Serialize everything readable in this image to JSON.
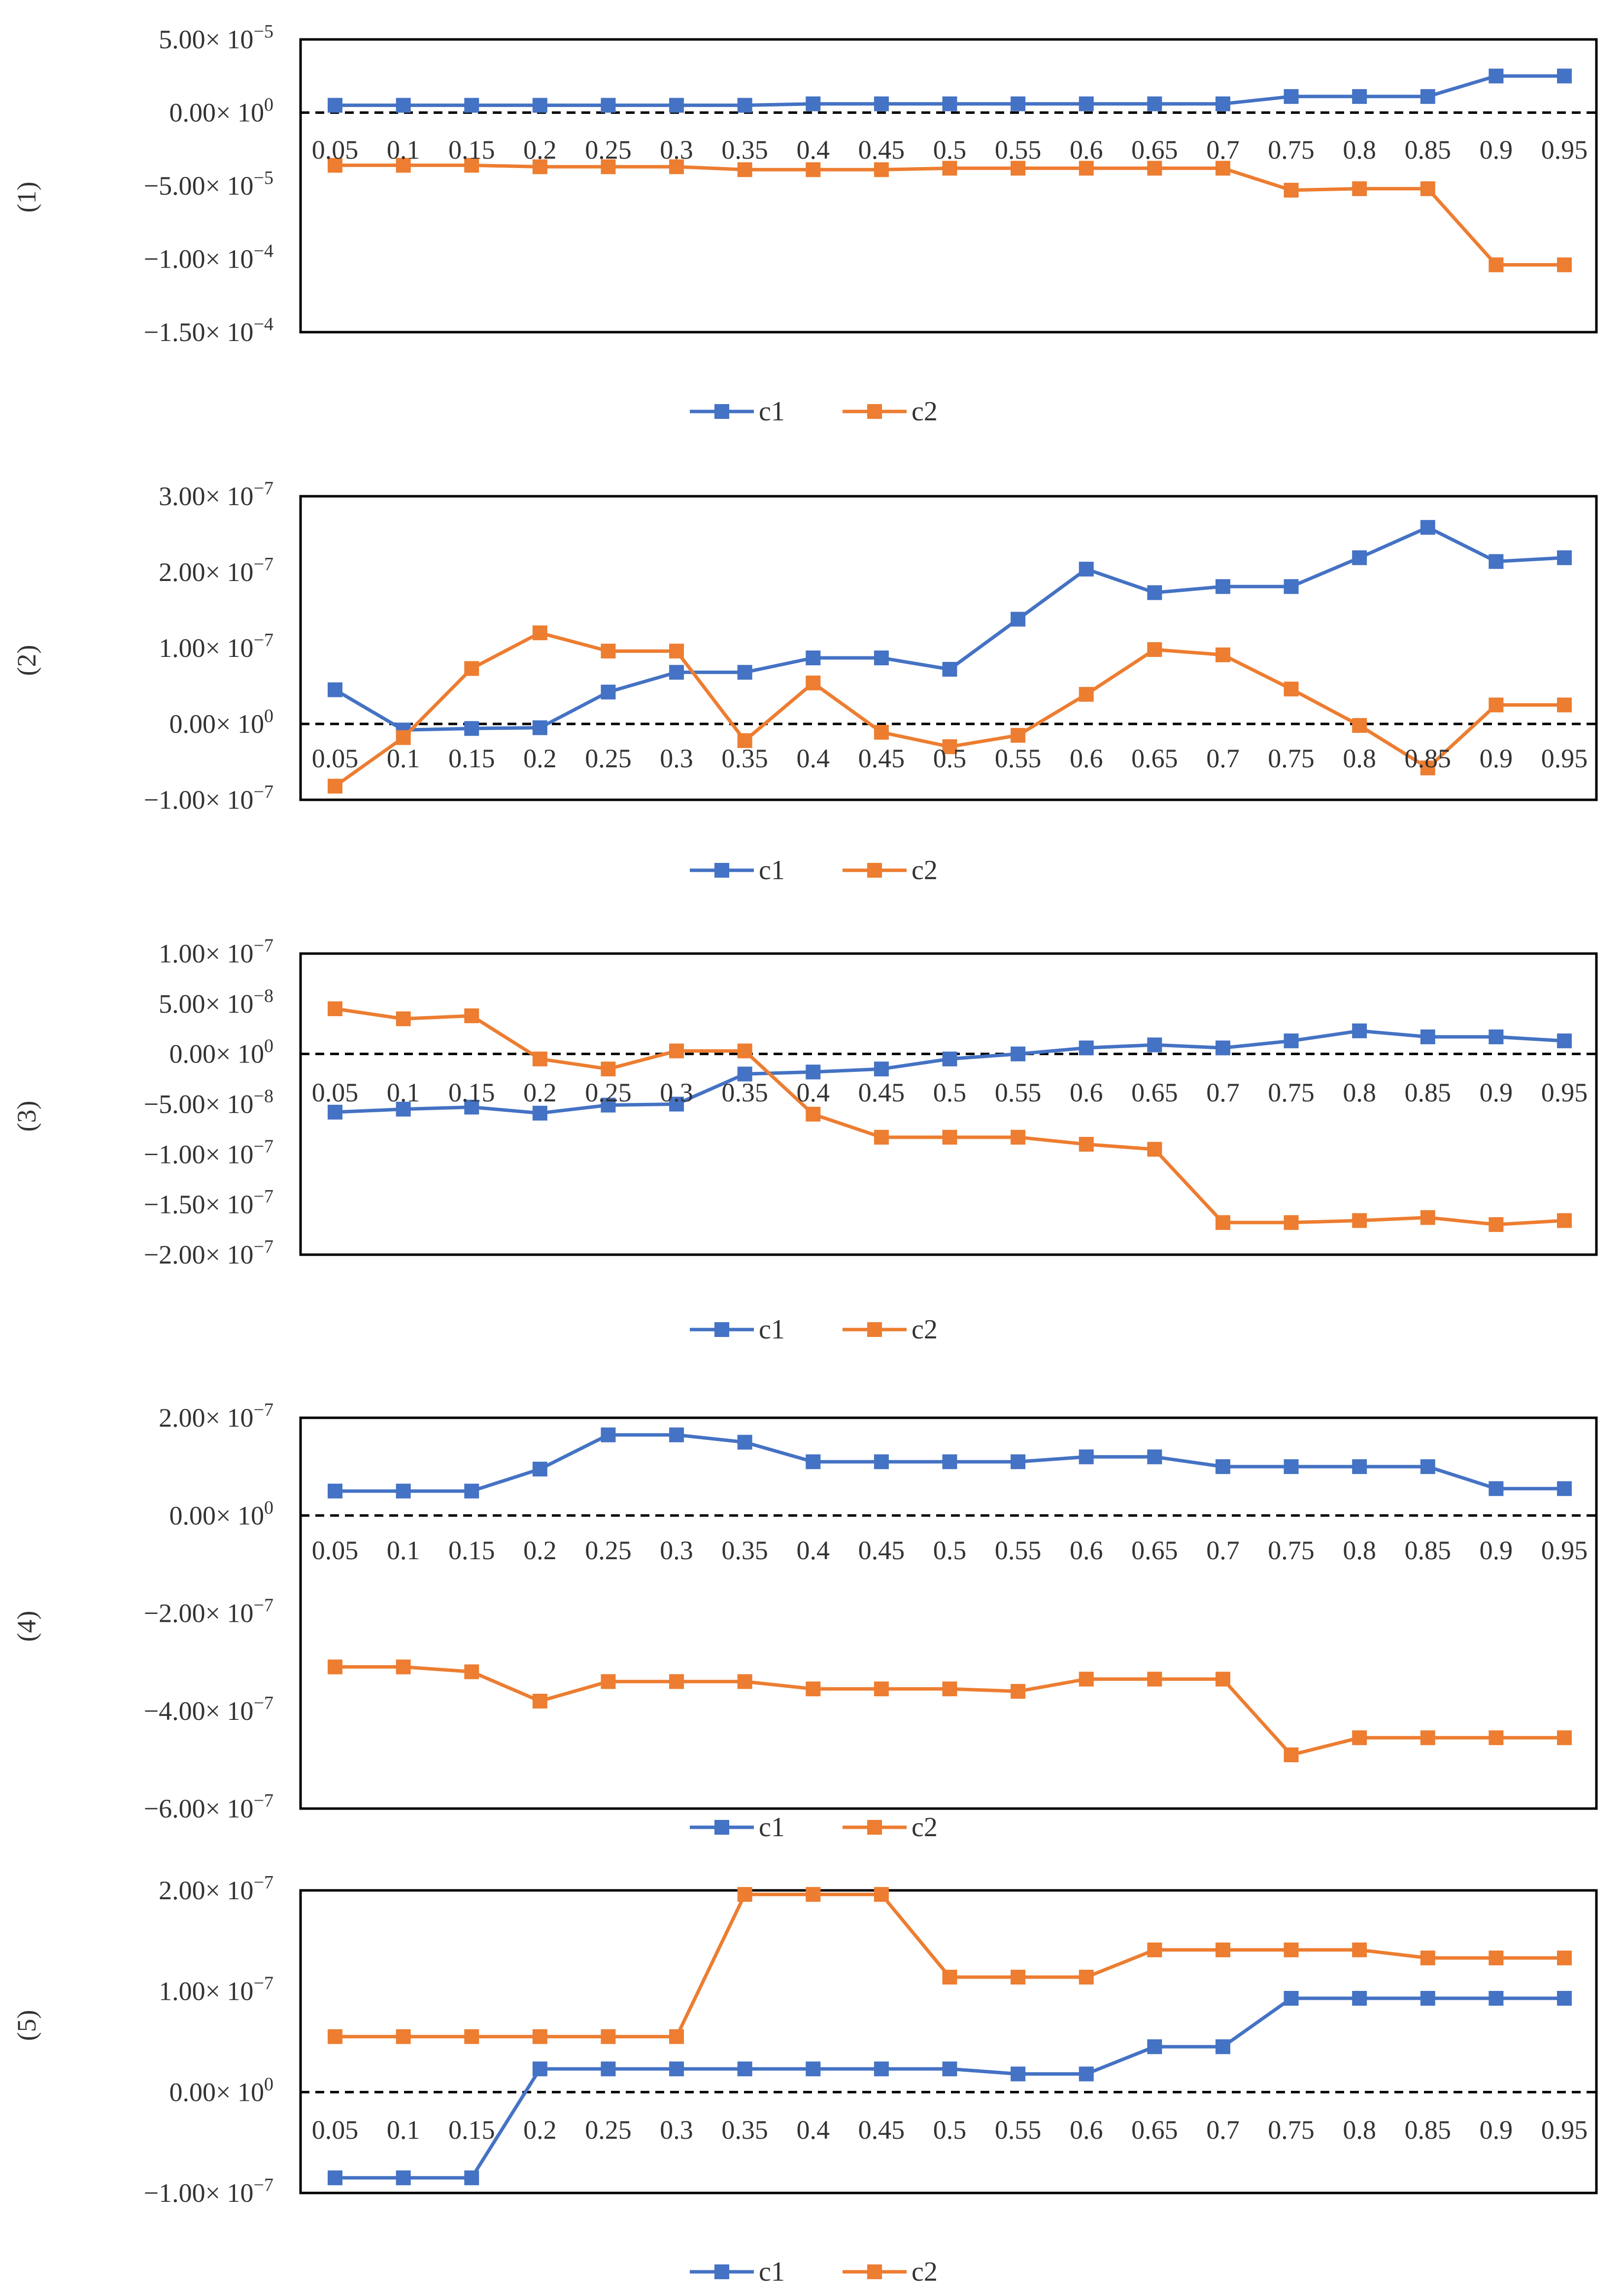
{
  "colors": {
    "c1": "#4472C4",
    "c2": "#ED7D31",
    "axis": "#000000",
    "text": "#333333"
  },
  "categories": [
    "0.05",
    "0.1",
    "0.15",
    "0.2",
    "0.25",
    "0.3",
    "0.35",
    "0.4",
    "0.45",
    "0.5",
    "0.55",
    "0.6",
    "0.65",
    "0.7",
    "0.75",
    "0.8",
    "0.85",
    "0.9",
    "0.95"
  ],
  "chart_data": [
    {
      "type": "line",
      "panel_label": "(1)",
      "ylim": [
        -0.00015,
        5e-05
      ],
      "yticks": [
        {
          "value": 5e-05,
          "mant": "5.00",
          "exp": "−5"
        },
        {
          "value": 0,
          "mant": "0.00",
          "exp": "0"
        },
        {
          "value": -5e-05,
          "mant": "−5.00",
          "exp": "−5"
        },
        {
          "value": -0.0001,
          "mant": "−1.00",
          "exp": "−4"
        },
        {
          "value": -0.00015,
          "mant": "−1.50",
          "exp": "−4"
        }
      ],
      "series": [
        {
          "name": "c1",
          "values": [
            5e-06,
            5e-06,
            5e-06,
            5e-06,
            5e-06,
            5e-06,
            5e-06,
            6e-06,
            6e-06,
            6e-06,
            6e-06,
            6e-06,
            6e-06,
            6e-06,
            1.1e-05,
            1.1e-05,
            1.1e-05,
            2.5e-05,
            2.5e-05
          ]
        },
        {
          "name": "c2",
          "values": [
            -3.6e-05,
            -3.6e-05,
            -3.6e-05,
            -3.7e-05,
            -3.7e-05,
            -3.7e-05,
            -3.9e-05,
            -3.9e-05,
            -3.9e-05,
            -3.8e-05,
            -3.8e-05,
            -3.8e-05,
            -3.8e-05,
            -3.8e-05,
            -5.3e-05,
            -5.2e-05,
            -5.2e-05,
            -0.000104,
            -0.000104
          ]
        }
      ]
    },
    {
      "type": "line",
      "panel_label": "(2)",
      "ylim": [
        -1e-07,
        3e-07
      ],
      "yticks": [
        {
          "value": 3e-07,
          "mant": "3.00",
          "exp": "−7"
        },
        {
          "value": 2e-07,
          "mant": "2.00",
          "exp": "−7"
        },
        {
          "value": 1e-07,
          "mant": "1.00",
          "exp": "−7"
        },
        {
          "value": 0,
          "mant": "0.00",
          "exp": "0"
        },
        {
          "value": -1e-07,
          "mant": "−1.00",
          "exp": "−7"
        }
      ],
      "series": [
        {
          "name": "c1",
          "values": [
            4.5e-08,
            -8e-09,
            -6e-09,
            -5e-09,
            4.2e-08,
            6.8e-08,
            6.8e-08,
            8.7e-08,
            8.7e-08,
            7.2e-08,
            1.38e-07,
            2.04e-07,
            1.73e-07,
            1.81e-07,
            1.81e-07,
            2.19e-07,
            2.59e-07,
            2.14e-07,
            2.19e-07
          ]
        },
        {
          "name": "c2",
          "values": [
            -8.2e-08,
            -1.8e-08,
            7.3e-08,
            1.2e-07,
            9.6e-08,
            9.6e-08,
            -2.2e-08,
            5.4e-08,
            -1.1e-08,
            -3e-08,
            -1.5e-08,
            3.9e-08,
            9.8e-08,
            9.1e-08,
            4.6e-08,
            -2e-09,
            -5.8e-08,
            2.5e-08,
            2.5e-08
          ]
        }
      ]
    },
    {
      "type": "line",
      "panel_label": "(3)",
      "ylim": [
        -2e-07,
        1e-07
      ],
      "yticks": [
        {
          "value": 1e-07,
          "mant": "1.00",
          "exp": "−7"
        },
        {
          "value": 5e-08,
          "mant": "5.00",
          "exp": "−8"
        },
        {
          "value": 0,
          "mant": "0.00",
          "exp": "0"
        },
        {
          "value": -5e-08,
          "mant": "−5.00",
          "exp": "−8"
        },
        {
          "value": -1e-07,
          "mant": "−1.00",
          "exp": "−7"
        },
        {
          "value": -1.5e-07,
          "mant": "−1.50",
          "exp": "−7"
        },
        {
          "value": -2e-07,
          "mant": "−2.00",
          "exp": "−7"
        }
      ],
      "series": [
        {
          "name": "c1",
          "values": [
            -5.8e-08,
            -5.5e-08,
            -5.3e-08,
            -5.9e-08,
            -5.1e-08,
            -5e-08,
            -2e-08,
            -1.8e-08,
            -1.5e-08,
            -5e-09,
            0,
            6e-09,
            9e-09,
            6e-09,
            1.3e-08,
            2.3e-08,
            1.7e-08,
            1.7e-08,
            1.3e-08
          ]
        },
        {
          "name": "c2",
          "values": [
            4.5e-08,
            3.5e-08,
            3.8e-08,
            -5e-09,
            -1.5e-08,
            3e-09,
            3e-09,
            -6e-08,
            -8.3e-08,
            -8.3e-08,
            -8.3e-08,
            -9e-08,
            -9.5e-08,
            -1.68e-07,
            -1.68e-07,
            -1.66e-07,
            -1.63e-07,
            -1.7e-07,
            -1.66e-07
          ]
        }
      ]
    },
    {
      "type": "line",
      "panel_label": "(4)",
      "ylim": [
        -6e-07,
        2e-07
      ],
      "yticks": [
        {
          "value": 2e-07,
          "mant": "2.00",
          "exp": "−7"
        },
        {
          "value": 0,
          "mant": "0.00",
          "exp": "0"
        },
        {
          "value": -2e-07,
          "mant": "−2.00",
          "exp": "−7"
        },
        {
          "value": -4e-07,
          "mant": "−4.00",
          "exp": "−7"
        },
        {
          "value": -6e-07,
          "mant": "−6.00",
          "exp": "−7"
        }
      ],
      "series": [
        {
          "name": "c1",
          "values": [
            5e-08,
            5e-08,
            5e-08,
            9.5e-08,
            1.65e-07,
            1.65e-07,
            1.5e-07,
            1.1e-07,
            1.1e-07,
            1.1e-07,
            1.1e-07,
            1.2e-07,
            1.2e-07,
            1e-07,
            1e-07,
            1e-07,
            1e-07,
            5.5e-08,
            5.5e-08
          ]
        },
        {
          "name": "c2",
          "values": [
            -3.1e-07,
            -3.1e-07,
            -3.2e-07,
            -3.8e-07,
            -3.4e-07,
            -3.4e-07,
            -3.4e-07,
            -3.55e-07,
            -3.55e-07,
            -3.55e-07,
            -3.6e-07,
            -3.35e-07,
            -3.35e-07,
            -3.35e-07,
            -4.9e-07,
            -4.55e-07,
            -4.55e-07,
            -4.55e-07,
            -4.55e-07
          ]
        }
      ]
    },
    {
      "type": "line",
      "panel_label": "(5)",
      "ylim": [
        -1e-07,
        2e-07
      ],
      "yticks": [
        {
          "value": 2e-07,
          "mant": "2.00",
          "exp": "−7"
        },
        {
          "value": 1e-07,
          "mant": "1.00",
          "exp": "−7"
        },
        {
          "value": 0,
          "mant": "0.00",
          "exp": "0"
        },
        {
          "value": -1e-07,
          "mant": "−1.00",
          "exp": "−7"
        }
      ],
      "series": [
        {
          "name": "c1",
          "values": [
            -8.5e-08,
            -8.5e-08,
            -8.5e-08,
            2.3e-08,
            2.3e-08,
            2.3e-08,
            2.3e-08,
            2.3e-08,
            2.3e-08,
            2.3e-08,
            1.8e-08,
            1.8e-08,
            4.5e-08,
            4.5e-08,
            9.3e-08,
            9.3e-08,
            9.3e-08,
            9.3e-08,
            9.3e-08
          ]
        },
        {
          "name": "c2",
          "values": [
            5.5e-08,
            5.5e-08,
            5.5e-08,
            5.5e-08,
            5.5e-08,
            5.5e-08,
            1.96e-07,
            1.96e-07,
            1.96e-07,
            1.14e-07,
            1.14e-07,
            1.14e-07,
            1.41e-07,
            1.41e-07,
            1.41e-07,
            1.41e-07,
            1.33e-07,
            1.33e-07,
            1.33e-07
          ]
        }
      ]
    }
  ]
}
